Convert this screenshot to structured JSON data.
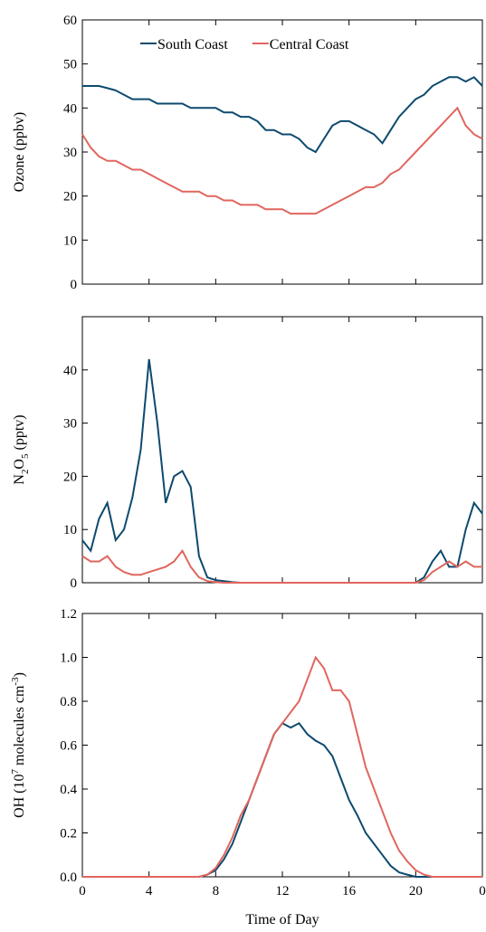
{
  "chart_data": [
    {
      "type": "line",
      "ylabel": [
        {
          "text": "Ozone (ppbv)",
          "shift": ""
        }
      ],
      "legend": "top",
      "xlim": [
        0,
        24
      ],
      "xticks": [
        0,
        4,
        8,
        12,
        16,
        20,
        24
      ],
      "ylim": [
        0,
        60
      ],
      "yticks": [
        0,
        10,
        20,
        30,
        40,
        50,
        60
      ],
      "x": [
        0,
        0.5,
        1,
        1.5,
        2,
        2.5,
        3,
        3.5,
        4,
        4.5,
        5,
        5.5,
        6,
        6.5,
        7,
        7.5,
        8,
        8.5,
        9,
        9.5,
        10,
        10.5,
        11,
        11.5,
        12,
        12.5,
        13,
        13.5,
        14,
        14.5,
        15,
        15.5,
        16,
        16.5,
        17,
        17.5,
        18,
        18.5,
        19,
        19.5,
        20,
        20.5,
        21,
        21.5,
        22,
        22.5,
        23,
        23.5,
        24
      ],
      "series": [
        {
          "name": "South Coast",
          "color": "#0d4a6e",
          "values": [
            45,
            45,
            45,
            44.5,
            44,
            43,
            42,
            42,
            42,
            41,
            41,
            41,
            41,
            40,
            40,
            40,
            40,
            39,
            39,
            38,
            38,
            37,
            35,
            35,
            34,
            34,
            33,
            31,
            30,
            33,
            36,
            37,
            37,
            36,
            35,
            34,
            32,
            35,
            38,
            40,
            42,
            43,
            45,
            46,
            47,
            47,
            46,
            47,
            45
          ]
        },
        {
          "name": "Central Coast",
          "color": "#e0665e",
          "values": [
            34,
            31,
            29,
            28,
            28,
            27,
            26,
            26,
            25,
            24,
            23,
            22,
            21,
            21,
            21,
            20,
            20,
            19,
            19,
            18,
            18,
            18,
            17,
            17,
            17,
            16,
            16,
            16,
            16,
            17,
            18,
            19,
            20,
            21,
            22,
            22,
            23,
            25,
            26,
            28,
            30,
            32,
            34,
            36,
            38,
            40,
            36,
            34,
            33
          ]
        }
      ]
    },
    {
      "type": "line",
      "ylabel": [
        {
          "text": "N",
          "shift": ""
        },
        {
          "text": "2",
          "shift": "sub"
        },
        {
          "text": "O",
          "shift": ""
        },
        {
          "text": "5",
          "shift": "sub"
        },
        {
          "text": " (pptv)",
          "shift": ""
        }
      ],
      "xlim": [
        0,
        24
      ],
      "xticks": [
        0,
        4,
        8,
        12,
        16,
        20,
        24
      ],
      "ylim": [
        0,
        50
      ],
      "yticks": [
        0,
        10,
        20,
        30,
        40
      ],
      "x": [
        0,
        0.5,
        1,
        1.5,
        2,
        2.5,
        3,
        3.5,
        4,
        4.5,
        5,
        5.5,
        6,
        6.5,
        7,
        7.5,
        8,
        8.5,
        9,
        9.5,
        10,
        10.5,
        11,
        11.5,
        12,
        12.5,
        13,
        13.5,
        14,
        14.5,
        15,
        15.5,
        16,
        16.5,
        17,
        17.5,
        18,
        18.5,
        19,
        19.5,
        20,
        20.5,
        21,
        21.5,
        22,
        22.5,
        23,
        23.5,
        24
      ],
      "series": [
        {
          "name": "South Coast",
          "color": "#0d4a6e",
          "values": [
            8,
            6,
            12,
            15,
            8,
            10,
            16,
            25,
            42,
            30,
            15,
            20,
            21,
            18,
            5,
            1,
            0.5,
            0.3,
            0.1,
            0,
            0,
            0,
            0,
            0,
            0,
            0,
            0,
            0,
            0,
            0,
            0,
            0,
            0,
            0,
            0,
            0,
            0,
            0,
            0,
            0,
            0,
            1,
            4,
            6,
            3,
            3,
            10,
            15,
            13
          ]
        },
        {
          "name": "Central Coast",
          "color": "#e0665e",
          "values": [
            5,
            4,
            4,
            5,
            3,
            2,
            1.5,
            1.5,
            2,
            2.5,
            3,
            4,
            6,
            3,
            1,
            0.3,
            0.1,
            0,
            0,
            0,
            0,
            0,
            0,
            0,
            0,
            0,
            0,
            0,
            0,
            0,
            0,
            0,
            0,
            0,
            0,
            0,
            0,
            0,
            0,
            0,
            0,
            0.5,
            2,
            3,
            4,
            3,
            4,
            3,
            3
          ]
        }
      ]
    },
    {
      "type": "line",
      "ylabel": [
        {
          "text": "OH (10",
          "shift": ""
        },
        {
          "text": "7",
          "shift": "super"
        },
        {
          "text": " molecules cm",
          "shift": ""
        },
        {
          "text": "-3",
          "shift": "super"
        },
        {
          "text": ")",
          "shift": ""
        }
      ],
      "xlabel": "Time of Day",
      "xlim": [
        0,
        24
      ],
      "xticks": [
        0,
        4,
        8,
        12,
        16,
        20,
        {
          "value": 24,
          "label": "0"
        }
      ],
      "ylim": [
        0,
        1.2
      ],
      "yticks": [
        {
          "value": 0,
          "label": "0.0"
        },
        0.2,
        0.4,
        0.6,
        0.8,
        {
          "value": 1,
          "label": "1.0"
        },
        1.2
      ],
      "x": [
        0,
        0.5,
        1,
        1.5,
        2,
        2.5,
        3,
        3.5,
        4,
        4.5,
        5,
        5.5,
        6,
        6.5,
        7,
        7.5,
        8,
        8.5,
        9,
        9.5,
        10,
        10.5,
        11,
        11.5,
        12,
        12.5,
        13,
        13.5,
        14,
        14.5,
        15,
        15.5,
        16,
        16.5,
        17,
        17.5,
        18,
        18.5,
        19,
        19.5,
        20,
        20.5,
        21,
        21.5,
        22,
        22.5,
        23,
        23.5,
        24
      ],
      "series": [
        {
          "name": "South Coast",
          "color": "#0d4a6e",
          "values": [
            0,
            0,
            0,
            0,
            0,
            0,
            0,
            0,
            0,
            0,
            0,
            0,
            0,
            0,
            0,
            0.01,
            0.03,
            0.08,
            0.15,
            0.25,
            0.35,
            0.45,
            0.55,
            0.65,
            0.7,
            0.68,
            0.7,
            0.65,
            0.62,
            0.6,
            0.55,
            0.45,
            0.35,
            0.28,
            0.2,
            0.15,
            0.1,
            0.05,
            0.02,
            0.01,
            0,
            0,
            0,
            0,
            0,
            0,
            0,
            0,
            0
          ]
        },
        {
          "name": "Central Coast",
          "color": "#e0665e",
          "values": [
            0,
            0,
            0,
            0,
            0,
            0,
            0,
            0,
            0,
            0,
            0,
            0,
            0,
            0,
            0,
            0.01,
            0.04,
            0.1,
            0.18,
            0.28,
            0.35,
            0.45,
            0.55,
            0.65,
            0.7,
            0.75,
            0.8,
            0.9,
            1.0,
            0.95,
            0.85,
            0.85,
            0.8,
            0.65,
            0.5,
            0.4,
            0.3,
            0.2,
            0.12,
            0.07,
            0.03,
            0.01,
            0,
            0,
            0,
            0,
            0,
            0,
            0
          ]
        }
      ]
    }
  ]
}
